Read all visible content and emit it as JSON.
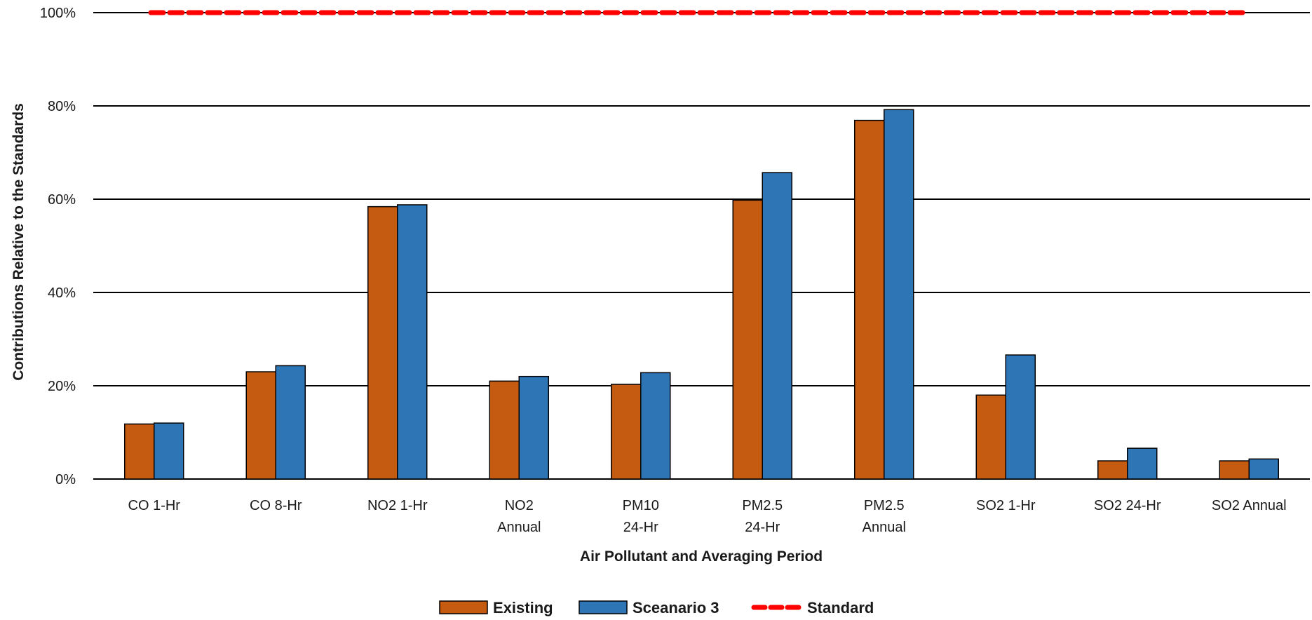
{
  "chart_data": {
    "type": "bar",
    "title": "",
    "xlabel": "Air Pollutant and Averaging Period",
    "ylabel": "Contributions Relative to the Standards",
    "ylim": [
      0,
      100
    ],
    "yticks": [
      "0%",
      "20%",
      "40%",
      "60%",
      "80%",
      "100%"
    ],
    "grid": true,
    "legend_position": "bottom",
    "categories": [
      [
        "CO 1-Hr"
      ],
      [
        "CO 8-Hr"
      ],
      [
        "NO2 1-Hr"
      ],
      [
        "NO2",
        "Annual"
      ],
      [
        "PM10",
        "24-Hr"
      ],
      [
        "PM2.5",
        "24-Hr"
      ],
      [
        "PM2.5",
        "Annual"
      ],
      [
        "SO2 1-Hr"
      ],
      [
        "SO2 24-Hr"
      ],
      [
        "SO2 Annual"
      ]
    ],
    "series": [
      {
        "name": "Existing",
        "color": "#c55a11",
        "values": [
          11.8,
          23.0,
          58.4,
          21.0,
          20.3,
          59.8,
          76.9,
          18.0,
          3.9,
          3.9
        ]
      },
      {
        "name": "Sceanario 3",
        "color": "#2e75b6",
        "values": [
          12.0,
          24.3,
          58.8,
          22.0,
          22.8,
          65.7,
          79.2,
          26.6,
          6.6,
          4.3
        ]
      }
    ],
    "reference_line": {
      "name": "Standard",
      "value": 100,
      "color": "#ff0000",
      "style": "dashed"
    }
  }
}
